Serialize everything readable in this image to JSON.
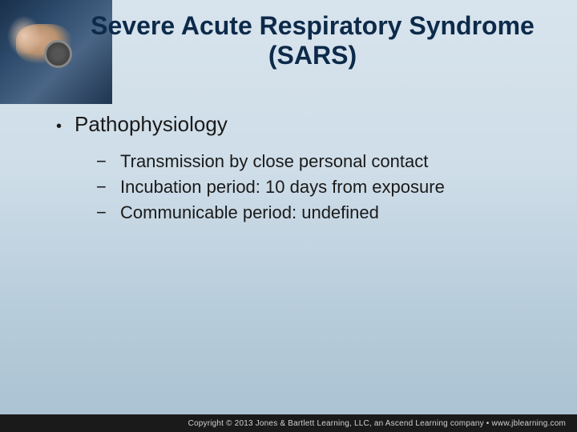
{
  "title": "Severe Acute Respiratory Syndrome (SARS)",
  "heading": "Pathophysiology",
  "bullets": {
    "b0": "Transmission by close personal contact",
    "b1": "Incubation period: 10 days from exposure",
    "b2": "Communicable period: undefined"
  },
  "footer": "Copyright © 2013 Jones & Bartlett Learning, LLC, an Ascend Learning company • www.jblearning.com",
  "colors": {
    "title": "#0d2a4a",
    "text": "#1a1a1a",
    "bg_top": "#d8e4ed",
    "bg_bottom": "#a9c1d2",
    "footer_bg": "#1a1a1a",
    "footer_text": "#d0d0d0"
  },
  "fonts": {
    "title_size": 32,
    "level1_size": 26,
    "level2_size": 22,
    "footer_size": 10
  }
}
